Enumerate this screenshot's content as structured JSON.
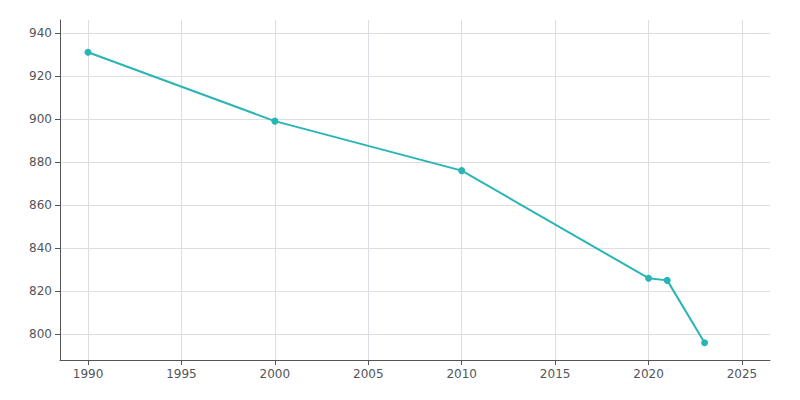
{
  "chart_data": {
    "type": "line",
    "x": [
      1990,
      2000,
      2010,
      2020,
      2021,
      2023
    ],
    "values": [
      931,
      899,
      876,
      826,
      825,
      796
    ],
    "color": "#2ab5b5",
    "marker": "circle",
    "xlim": [
      1988.5,
      2026.5
    ],
    "ylim": [
      788,
      946
    ],
    "xticks": [
      1990,
      1995,
      2000,
      2005,
      2010,
      2015,
      2020,
      2025
    ],
    "yticks": [
      800,
      820,
      840,
      860,
      880,
      900,
      920,
      940
    ],
    "grid": true
  }
}
